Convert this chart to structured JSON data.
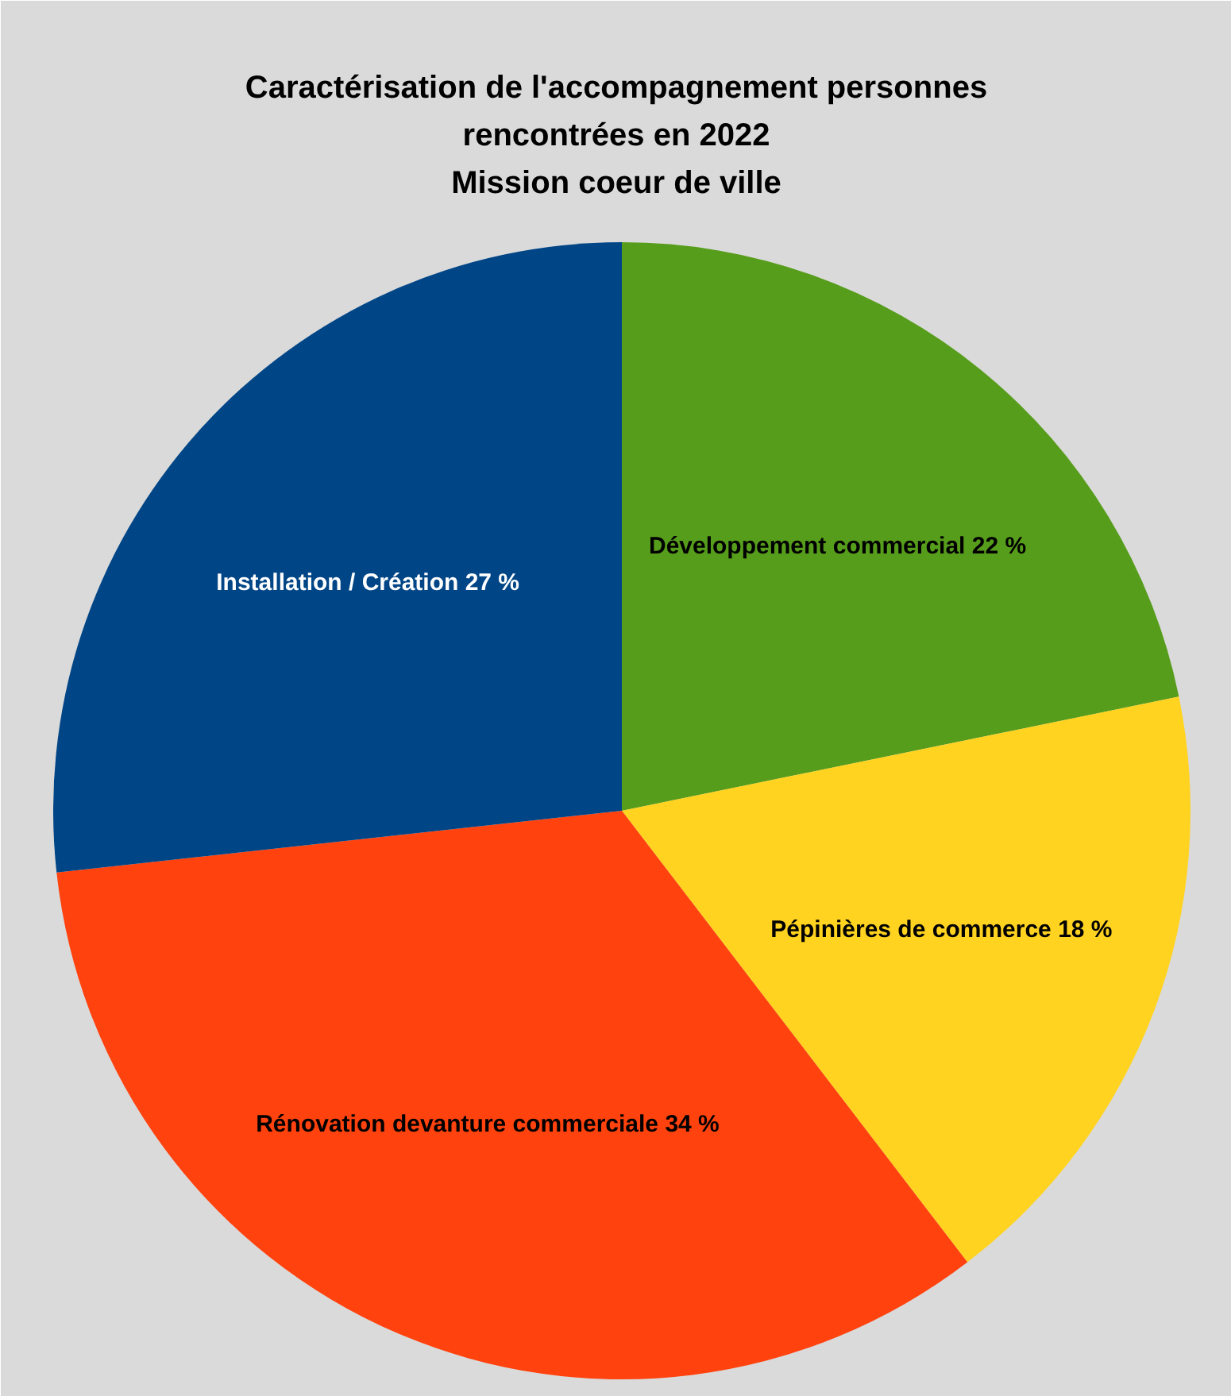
{
  "chart_data": {
    "type": "pie",
    "title": "Caractérisation de l'accompagnement personnes\nrencontrées en 2022\nMission coeur de ville",
    "categories": [
      "Développement commercial",
      "Pépinières de commerce",
      "Rénovation devanture commerciale",
      "Installation / Création"
    ],
    "values": [
      22,
      18,
      34,
      27
    ],
    "colors": [
      "#579d1c",
      "#ffd320",
      "#ff420e",
      "#004586"
    ],
    "value_labels": [
      "22 %",
      "18 %",
      "34 %",
      "27 %"
    ]
  }
}
